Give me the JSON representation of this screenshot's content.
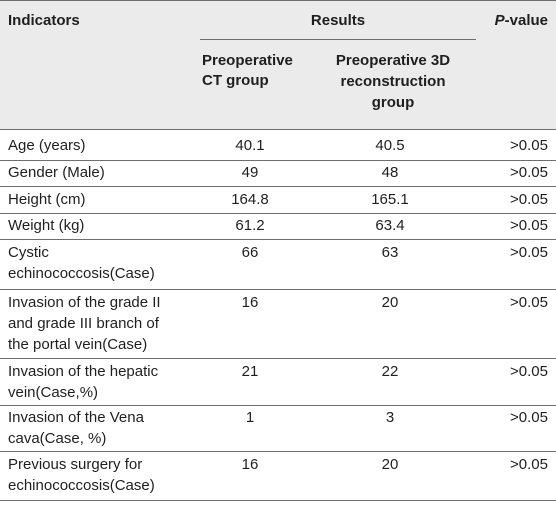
{
  "table": {
    "header": {
      "indicators": "Indicators",
      "results": "Results",
      "p_value_prefix": "P",
      "p_value_suffix": "-value",
      "group_ct": [
        "Preoperative",
        "CT group"
      ],
      "group_3d": [
        "Preoperative 3D",
        "reconstruction",
        "group"
      ]
    },
    "rows": [
      {
        "indicator": [
          "Age (years)"
        ],
        "ct": "40.1",
        "recon": "40.5",
        "p": ">0.05"
      },
      {
        "indicator": [
          "Gender (Male)"
        ],
        "ct": "49",
        "recon": "48",
        "p": ">0.05"
      },
      {
        "indicator": [
          "Height (cm)"
        ],
        "ct": "164.8",
        "recon": "165.1",
        "p": ">0.05"
      },
      {
        "indicator": [
          "Weight (kg)"
        ],
        "ct": "61.2",
        "recon": "63.4",
        "p": ">0.05"
      },
      {
        "indicator": [
          "Cystic",
          "echinococcosis(Case)"
        ],
        "ct": "66",
        "recon": "63",
        "p": ">0.05"
      },
      {
        "indicator": [
          "Invasion of the grade II",
          "and grade III branch of",
          "the portal vein(Case)"
        ],
        "ct": "16",
        "recon": "20",
        "p": ">0.05"
      },
      {
        "indicator": [
          "Invasion of the hepatic",
          "vein(Case,%)"
        ],
        "ct": "21",
        "recon": "22",
        "p": ">0.05"
      },
      {
        "indicator": [
          "Invasion of the Vena",
          "cava(Case, %)"
        ],
        "ct": "1",
        "recon": "3",
        "p": ">0.05"
      },
      {
        "indicator": [
          "Previous surgery for",
          "echinococcosis(Case)"
        ],
        "ct": "16",
        "recon": "20",
        "p": ">0.05"
      }
    ]
  }
}
